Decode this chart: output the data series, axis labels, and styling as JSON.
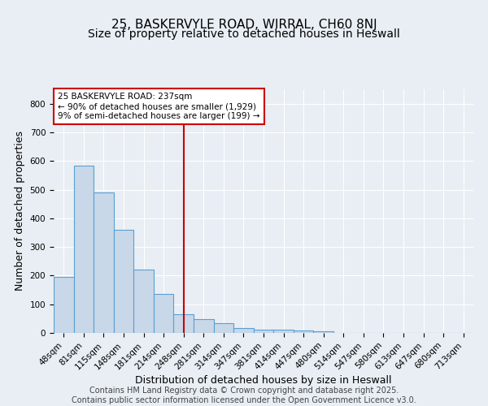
{
  "title": "25, BASKERVYLE ROAD, WIRRAL, CH60 8NJ",
  "subtitle": "Size of property relative to detached houses in Heswall",
  "xlabel": "Distribution of detached houses by size in Heswall",
  "ylabel": "Number of detached properties",
  "categories": [
    "48sqm",
    "81sqm",
    "115sqm",
    "148sqm",
    "181sqm",
    "214sqm",
    "248sqm",
    "281sqm",
    "314sqm",
    "347sqm",
    "381sqm",
    "414sqm",
    "447sqm",
    "480sqm",
    "514sqm",
    "547sqm",
    "580sqm",
    "613sqm",
    "647sqm",
    "680sqm",
    "713sqm"
  ],
  "values": [
    195,
    585,
    490,
    360,
    220,
    135,
    65,
    47,
    33,
    18,
    12,
    12,
    8,
    5,
    0,
    0,
    0,
    0,
    0,
    0,
    0
  ],
  "bar_color": "#c8d8e8",
  "bar_edge_color": "#5a9fd4",
  "vline_x": 6.0,
  "vline_color": "#cc0000",
  "annotation_text": "25 BASKERVYLE ROAD: 237sqm\n← 90% of detached houses are smaller (1,929)\n9% of semi-detached houses are larger (199) →",
  "annotation_box_edge": "#cc0000",
  "ylim": [
    0,
    850
  ],
  "yticks": [
    0,
    100,
    200,
    300,
    400,
    500,
    600,
    700,
    800
  ],
  "background_color": "#e8eef4",
  "grid_color": "#ffffff",
  "footer_text": "Contains HM Land Registry data © Crown copyright and database right 2025.\nContains public sector information licensed under the Open Government Licence v3.0.",
  "title_fontsize": 11,
  "subtitle_fontsize": 10,
  "label_fontsize": 9,
  "tick_fontsize": 7.5,
  "footer_fontsize": 7
}
